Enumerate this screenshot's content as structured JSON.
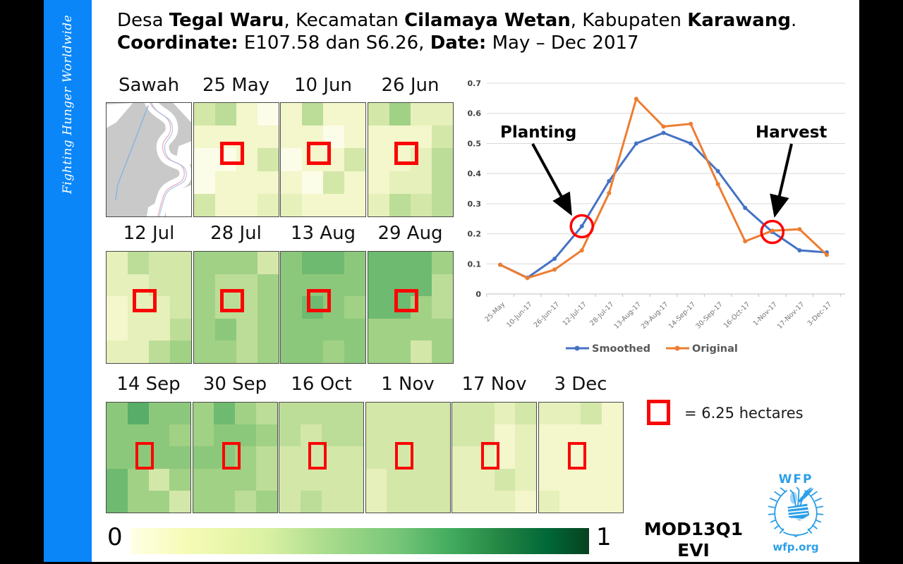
{
  "sidebar": {
    "tagline": "Fighting Hunger Worldwide"
  },
  "title": {
    "line1": [
      {
        "t": "Desa ",
        "b": false
      },
      {
        "t": "Tegal Waru",
        "b": true
      },
      {
        "t": ", Kecamatan ",
        "b": false
      },
      {
        "t": "Cilamaya Wetan",
        "b": true
      },
      {
        "t": ", Kabupaten ",
        "b": false
      },
      {
        "t": "Karawang",
        "b": true
      },
      {
        "t": ".",
        "b": false
      }
    ],
    "line2": [
      {
        "t": "Coordinate:",
        "b": true
      },
      {
        "t": " E107.58 dan S6.26, ",
        "b": false
      },
      {
        "t": "Date:",
        "b": true
      },
      {
        "t": " May – Dec 2017",
        "b": false
      }
    ]
  },
  "tiles": {
    "rows": [
      {
        "items": [
          {
            "label": "Sawah",
            "type": "map"
          },
          {
            "label": "25 May",
            "type": "grid",
            "cells": [
              "#d3e7a9",
              "#bcdd97",
              "#f4f6cb",
              "#fcfde8",
              "#f4f6cb",
              "#f4f6cb",
              "#f4f6cb",
              "#f4f6cb",
              "#fcfde8",
              "#fcfde8",
              "#f4f6cb",
              "#d3e7a9",
              "#fcfde8",
              "#f4f6cb",
              "#f4f6cb",
              "#f4f6cb",
              "#d3e7a9",
              "#f4f6cb",
              "#f4f6cb",
              "#e6f0ba"
            ]
          },
          {
            "label": "10 Jun",
            "type": "grid",
            "cells": [
              "#f4f6cb",
              "#bcdd97",
              "#f4f6cb",
              "#f4f6cb",
              "#f4f6cb",
              "#f4f6cb",
              "#fcfde8",
              "#f4f6cb",
              "#fcfde8",
              "#f4f6cb",
              "#f4f6cb",
              "#d3e7a9",
              "#f4f6cb",
              "#fcfde8",
              "#d3e7a9",
              "#f4f6cb",
              "#e6f0ba",
              "#f4f6cb",
              "#f4f6cb",
              "#f4f6cb"
            ]
          },
          {
            "label": "26 Jun",
            "type": "grid",
            "cells": [
              "#d3e7a9",
              "#a1d185",
              "#e6f0ba",
              "#e6f0ba",
              "#f4f6cb",
              "#f4f6cb",
              "#f4f6cb",
              "#d3e7a9",
              "#f4f6cb",
              "#f4f6cb",
              "#e6f0ba",
              "#bcdd97",
              "#f4f6cb",
              "#e6f0ba",
              "#e6f0ba",
              "#bcdd97",
              "#e6f0ba",
              "#bcdd97",
              "#d3e7a9",
              "#bcdd97"
            ]
          }
        ]
      },
      {
        "items": [
          {
            "label": "12 Jul",
            "type": "grid",
            "cells": [
              "#e6f0ba",
              "#bcdd97",
              "#d3e7a9",
              "#d3e7a9",
              "#e6f0ba",
              "#e6f0ba",
              "#d3e7a9",
              "#d3e7a9",
              "#f4f6cb",
              "#e6f0ba",
              "#e6f0ba",
              "#d3e7a9",
              "#f4f6cb",
              "#e6f0ba",
              "#e6f0ba",
              "#bcdd97",
              "#e6f0ba",
              "#e6f0ba",
              "#bcdd97",
              "#a1d185"
            ]
          },
          {
            "label": "28 Jul",
            "type": "grid",
            "cells": [
              "#a1d185",
              "#a1d185",
              "#a1d185",
              "#d3e7a9",
              "#a1d185",
              "#bcdd97",
              "#bcdd97",
              "#a1d185",
              "#a1d185",
              "#bcdd97",
              "#bcdd97",
              "#a1d185",
              "#a1d185",
              "#8cc87b",
              "#bcdd97",
              "#a1d185",
              "#a1d185",
              "#a1d185",
              "#bcdd97",
              "#a1d185"
            ]
          },
          {
            "label": "13 Aug",
            "type": "grid",
            "cells": [
              "#8cc87b",
              "#6eba70",
              "#6eba70",
              "#8cc87b",
              "#8cc87b",
              "#8cc87b",
              "#8cc87b",
              "#8cc87b",
              "#8cc87b",
              "#6eba70",
              "#8cc87b",
              "#a1d185",
              "#8cc87b",
              "#8cc87b",
              "#8cc87b",
              "#8cc87b",
              "#8cc87b",
              "#8cc87b",
              "#a1d185",
              "#8cc87b"
            ]
          },
          {
            "label": "29 Aug",
            "type": "grid",
            "cells": [
              "#6eba70",
              "#6eba70",
              "#6eba70",
              "#a1d185",
              "#6eba70",
              "#6eba70",
              "#6eba70",
              "#bcdd97",
              "#6eba70",
              "#6eba70",
              "#a1d185",
              "#bcdd97",
              "#a1d185",
              "#a1d185",
              "#a1d185",
              "#a1d185",
              "#a1d185",
              "#a1d185",
              "#d3e7a9",
              "#a1d185"
            ]
          }
        ]
      },
      {
        "items": [
          {
            "label": "14 Sep",
            "type": "grid",
            "cells": [
              "#8cc87b",
              "#58ad68",
              "#8cc87b",
              "#8cc87b",
              "#8cc87b",
              "#8cc87b",
              "#8cc87b",
              "#a1d185",
              "#8cc87b",
              "#8cc87b",
              "#8cc87b",
              "#8cc87b",
              "#6eba70",
              "#a1d185",
              "#d3e7a9",
              "#a1d185",
              "#6eba70",
              "#a1d185",
              "#a1d185",
              "#d3e7a9"
            ]
          },
          {
            "label": "30 Sep",
            "type": "grid",
            "cells": [
              "#a1d185",
              "#6eba70",
              "#a1d185",
              "#bcdd97",
              "#a1d185",
              "#8cc87b",
              "#8cc87b",
              "#a1d185",
              "#8cc87b",
              "#8cc87b",
              "#a1d185",
              "#bcdd97",
              "#a1d185",
              "#a1d185",
              "#a1d185",
              "#bcdd97",
              "#a1d185",
              "#a1d185",
              "#bcdd97",
              "#a1d185"
            ]
          },
          {
            "label": "16 Oct",
            "type": "grid",
            "cells": [
              "#bcdd97",
              "#bcdd97",
              "#bcdd97",
              "#bcdd97",
              "#bcdd97",
              "#d3e7a9",
              "#bcdd97",
              "#bcdd97",
              "#d3e7a9",
              "#d3e7a9",
              "#d3e7a9",
              "#d3e7a9",
              "#d3e7a9",
              "#d3e7a9",
              "#d3e7a9",
              "#d3e7a9",
              "#d3e7a9",
              "#bcdd97",
              "#d3e7a9",
              "#d3e7a9"
            ]
          },
          {
            "label": "1 Nov",
            "type": "grid",
            "cells": [
              "#d3e7a9",
              "#d3e7a9",
              "#d3e7a9",
              "#d3e7a9",
              "#d3e7a9",
              "#d3e7a9",
              "#d3e7a9",
              "#d3e7a9",
              "#d3e7a9",
              "#d3e7a9",
              "#d3e7a9",
              "#d3e7a9",
              "#e6f0ba",
              "#d3e7a9",
              "#d3e7a9",
              "#d3e7a9",
              "#e6f0ba",
              "#d3e7a9",
              "#d3e7a9",
              "#d3e7a9"
            ]
          },
          {
            "label": "17 Nov",
            "type": "grid",
            "cells": [
              "#d3e7a9",
              "#d3e7a9",
              "#e6f0ba",
              "#d3e7a9",
              "#d3e7a9",
              "#d3e7a9",
              "#f4f6cb",
              "#e6f0ba",
              "#e6f0ba",
              "#e6f0ba",
              "#f4f6cb",
              "#e6f0ba",
              "#e6f0ba",
              "#e6f0ba",
              "#d3e7a9",
              "#e6f0ba",
              "#e6f0ba",
              "#e6f0ba",
              "#e6f0ba",
              "#f4f6cb"
            ]
          },
          {
            "label": "3 Dec",
            "type": "grid",
            "cells": [
              "#e6f0ba",
              "#e6f0ba",
              "#d3e7a9",
              "#f4f6cb",
              "#f4f6cb",
              "#f4f6cb",
              "#f4f6cb",
              "#f4f6cb",
              "#f4f6cb",
              "#f4f6cb",
              "#f4f6cb",
              "#f4f6cb",
              "#f4f6cb",
              "#f4f6cb",
              "#f4f6cb",
              "#f4f6cb",
              "#e6f0ba",
              "#f4f6cb",
              "#f4f6cb",
              "#f4f6cb"
            ]
          }
        ]
      }
    ]
  },
  "chart_data": {
    "type": "line",
    "x": [
      "25-May",
      "10-Jun-17",
      "26-Jun-17",
      "12-Jul-17",
      "28-Jul-17",
      "13-Aug-17",
      "29-Aug-17",
      "14-Sep-17",
      "30-Sep-17",
      "16-Oct-17",
      "1-Nov-17",
      "17-Nov-17",
      "3-Dec-17"
    ],
    "series": [
      {
        "name": "Smoothed",
        "color": "#4472c4",
        "values": [
          0.097,
          0.054,
          0.117,
          0.225,
          0.375,
          0.5,
          0.535,
          0.5,
          0.408,
          0.286,
          0.206,
          0.145,
          0.138
        ]
      },
      {
        "name": "Original",
        "color": "#ed7d31",
        "values": [
          0.097,
          0.053,
          0.081,
          0.145,
          0.335,
          0.648,
          0.556,
          0.565,
          0.365,
          0.175,
          0.21,
          0.215,
          0.13
        ]
      }
    ],
    "ylim": [
      0,
      0.7
    ],
    "ytick_step": 0.1,
    "grid": true,
    "legend_position": "bottom",
    "annotations": [
      {
        "label": "Planting",
        "point": "12-Jul-17",
        "series": "Smoothed",
        "circle_color": "#ff0000"
      },
      {
        "label": "Harvest",
        "point": "1-Nov-17",
        "series": "Smoothed",
        "circle_color": "#ff0000"
      }
    ]
  },
  "scale_bar": {
    "min_label": "0",
    "max_label": "1"
  },
  "legend_box": {
    "label": "= 6.25 hectares",
    "marker_color": "#fa0505"
  },
  "product_label": {
    "line1": "MOD13Q1",
    "line2": "EVI"
  },
  "logo": {
    "acronym": "WFP",
    "website": "wfp.org",
    "color": "#2d9fe8"
  },
  "colors": {
    "sidebar_blue": "#0a86f9",
    "series_blue": "#4472c4",
    "series_orange": "#ed7d31",
    "marker_red": "#fa0505"
  }
}
